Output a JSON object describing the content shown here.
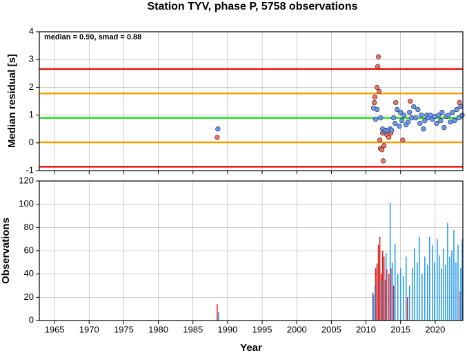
{
  "chart_data": [
    {
      "type": "scatter",
      "title": "Station TYV, phase P, 5758 observations",
      "ylabel": "Median residual [s]",
      "annotation": "median = 0.90, smad = 0.88",
      "xlim": [
        1962.8,
        2024
      ],
      "ylim": [
        -1,
        4
      ],
      "yticks": [
        -1,
        0,
        1,
        2,
        3,
        4
      ],
      "grid": true,
      "hlines": [
        {
          "value": 2.66,
          "color": "#ee1111"
        },
        {
          "value": 1.78,
          "color": "#f5a000"
        },
        {
          "value": 0.9,
          "color": "#22dd22"
        },
        {
          "value": 0.02,
          "color": "#f5a000"
        },
        {
          "value": -0.86,
          "color": "#ee1111"
        }
      ],
      "series": [
        {
          "color": "#f87060",
          "x": [
            1988.5,
            2011.2,
            2011.3,
            2011.6,
            2011.7,
            2011.8,
            2011.9,
            2012.0,
            2012.1,
            2012.3,
            2012.4,
            2012.5,
            2012.6,
            2013.0,
            2013.3,
            2013.6,
            2014.3,
            2015.3,
            2016.4,
            2023.5
          ],
          "values": [
            0.2,
            1.45,
            1.65,
            2.0,
            2.75,
            3.1,
            1.85,
            0.1,
            -0.2,
            -0.25,
            0.35,
            -0.65,
            -0.1,
            0.3,
            0.2,
            0.35,
            1.45,
            0.1,
            1.5,
            1.45
          ]
        },
        {
          "color": "#6699ff",
          "x": [
            1988.6,
            2011.1,
            2011.4,
            2011.6,
            2012.1,
            2012.4,
            2012.7,
            2012.9,
            2013.2,
            2013.5,
            2013.7,
            2014.0,
            2014.2,
            2014.5,
            2014.8,
            2015.0,
            2015.2,
            2015.5,
            2015.8,
            2016.1,
            2016.3,
            2016.6,
            2016.9,
            2017.2,
            2017.5,
            2017.8,
            2018.0,
            2018.3,
            2018.5,
            2018.8,
            2019.0,
            2019.3,
            2019.6,
            2019.9,
            2020.2,
            2020.5,
            2020.8,
            2021.0,
            2021.3,
            2021.6,
            2021.9,
            2022.2,
            2022.5,
            2022.8,
            2023.1,
            2023.4,
            2023.7,
            2023.9
          ],
          "values": [
            0.5,
            1.25,
            0.85,
            1.2,
            0.9,
            0.5,
            0.4,
            0.45,
            0.45,
            0.5,
            0.45,
            0.9,
            0.7,
            1.2,
            0.6,
            1.1,
            0.8,
            1.0,
            0.65,
            0.75,
            1.1,
            0.9,
            1.3,
            0.9,
            1.2,
            0.7,
            1.0,
            0.5,
            0.8,
            1.0,
            0.9,
            1.0,
            0.85,
            0.95,
            0.7,
            1.0,
            0.8,
            1.1,
            0.55,
            0.95,
            1.0,
            0.75,
            1.1,
            0.8,
            1.2,
            0.9,
            1.3,
            1.0
          ]
        }
      ]
    },
    {
      "type": "bar",
      "ylabel": "Observations",
      "xlabel": "Year",
      "xlim": [
        1962.8,
        2024
      ],
      "xticks": [
        1965,
        1970,
        1975,
        1980,
        1985,
        1990,
        1995,
        2000,
        2005,
        2010,
        2015,
        2020
      ],
      "ylim": [
        0,
        120
      ],
      "yticks": [
        0,
        20,
        40,
        60,
        80,
        100,
        120
      ],
      "grid": true,
      "series": [
        {
          "color": "#dd2222",
          "x": [
            1988.5,
            2011.0,
            2011.4,
            2011.6,
            2011.8,
            2012.0,
            2012.2,
            2012.4,
            2012.6,
            2012.8,
            2013.0,
            2013.3,
            2013.6,
            2014.0,
            2016.0,
            2023.6
          ],
          "values": [
            14,
            24,
            45,
            49,
            65,
            72,
            40,
            60,
            55,
            35,
            44,
            40,
            45,
            30,
            20,
            25
          ]
        },
        {
          "color": "#2a9df4",
          "x": [
            1988.7,
            2011.1,
            2011.3,
            2012.3,
            2012.9,
            2013.5,
            2013.8,
            2014.2,
            2014.6,
            2015.0,
            2015.4,
            2015.8,
            2016.3,
            2016.7,
            2017.0,
            2017.4,
            2017.7,
            2018.1,
            2018.5,
            2018.9,
            2019.2,
            2019.6,
            2019.9,
            2020.3,
            2020.6,
            2020.9,
            2021.2,
            2021.5,
            2021.8,
            2022.1,
            2022.4,
            2022.7,
            2023.0,
            2023.3,
            2023.7,
            2023.9
          ],
          "values": [
            7,
            22,
            30,
            35,
            58,
            101,
            50,
            66,
            40,
            45,
            38,
            55,
            30,
            45,
            62,
            50,
            72,
            40,
            55,
            48,
            72,
            65,
            50,
            70,
            56,
            45,
            62,
            48,
            84,
            55,
            60,
            78,
            50,
            65,
            45,
            70
          ]
        }
      ]
    }
  ]
}
